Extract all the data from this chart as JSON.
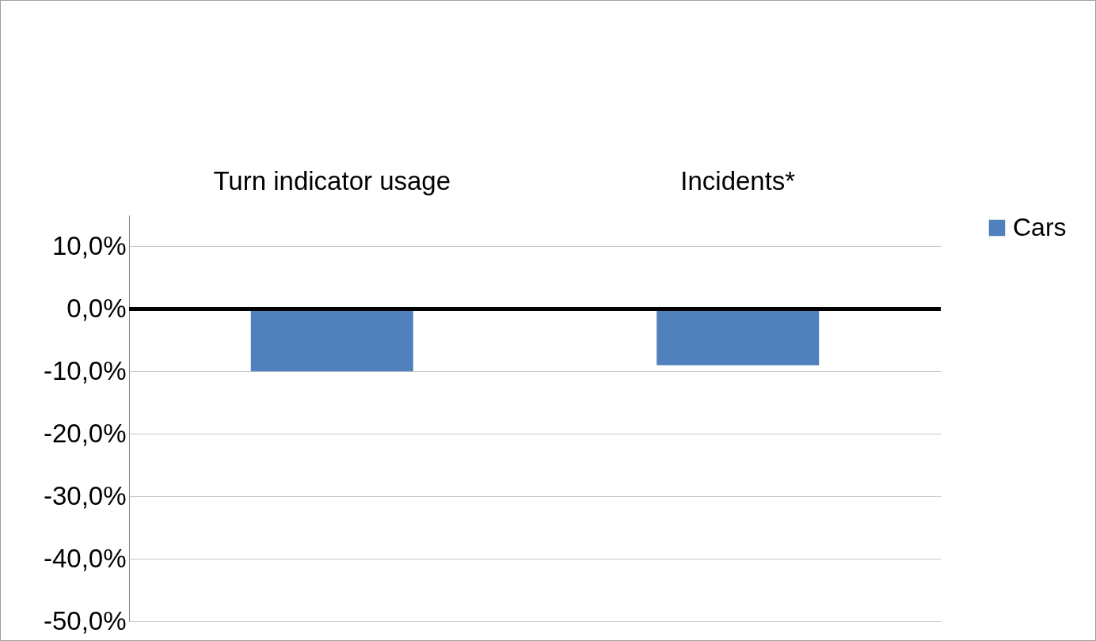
{
  "chart_data": {
    "type": "bar",
    "categories": [
      "Turn indicator usage",
      "Incidents*"
    ],
    "series": [
      {
        "name": "Cars",
        "color": "#4f81bd",
        "values": [
          -10.0,
          -9.0
        ]
      }
    ],
    "ylim": [
      -50,
      15
    ],
    "yticks": [
      {
        "value": -50,
        "label": "-50,0%"
      },
      {
        "value": -40,
        "label": "-40,0%"
      },
      {
        "value": -30,
        "label": "-30,0%"
      },
      {
        "value": -20,
        "label": "-20,0%"
      },
      {
        "value": -10,
        "label": "-10,0%"
      },
      {
        "value": 0,
        "label": "0,0%"
      },
      {
        "value": 10,
        "label": "10,0%"
      }
    ],
    "ref_lines": [
      {
        "axis": "y",
        "value": 0,
        "color": "#000000"
      }
    ],
    "grid": "y",
    "legend": "right"
  }
}
